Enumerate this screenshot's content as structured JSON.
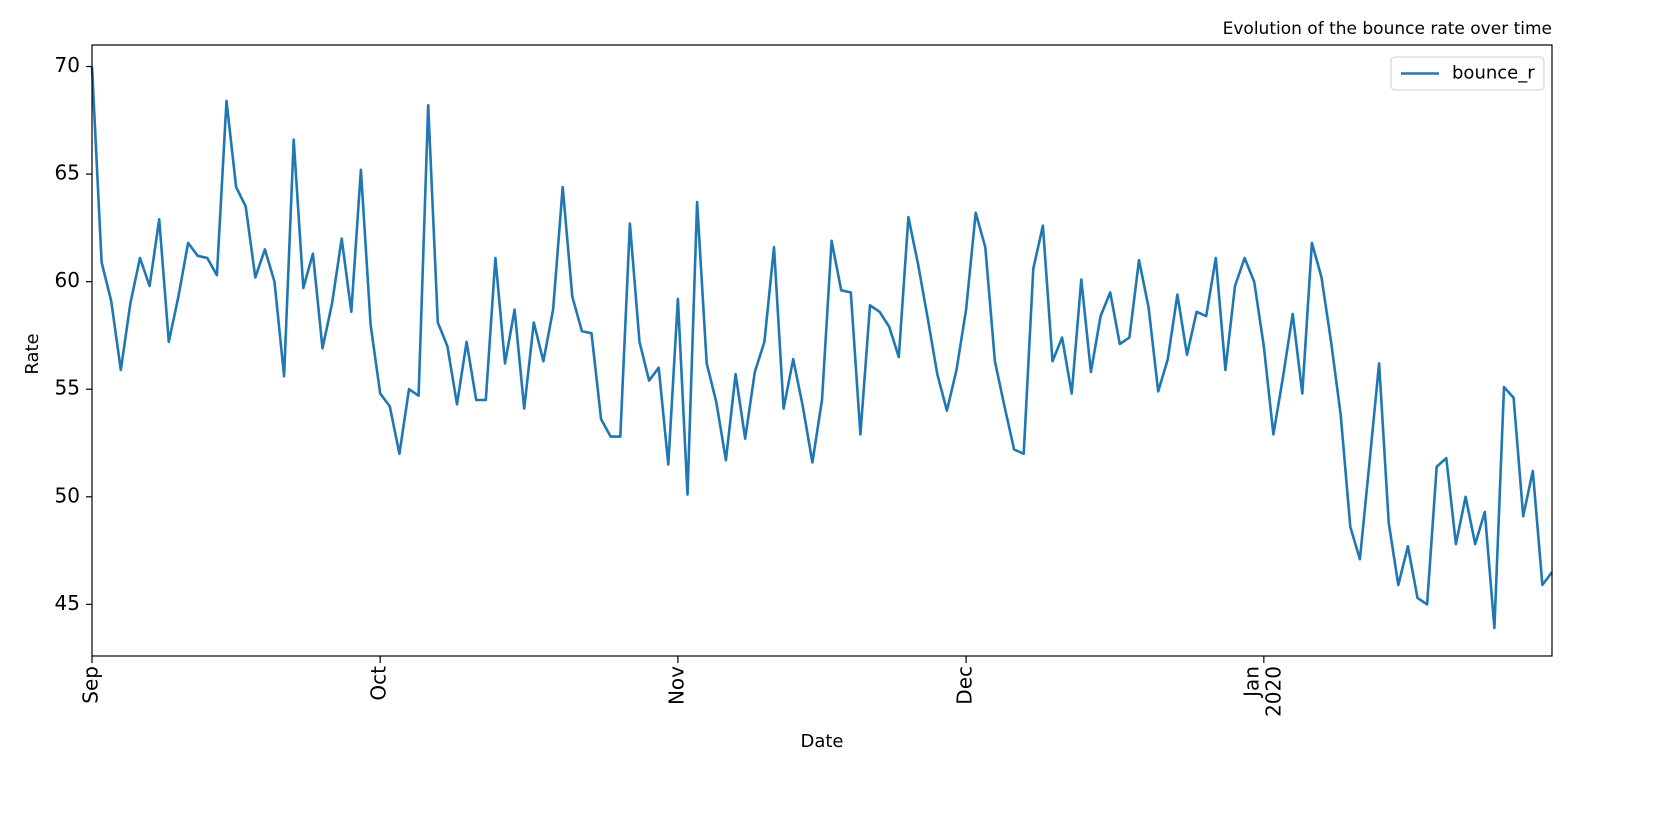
{
  "chart_data": {
    "type": "line",
    "title": "Evolution of the bounce rate over time",
    "xlabel": "Date",
    "ylabel": "Rate",
    "series": [
      {
        "name": "bounce_r",
        "color": "#1f77b4",
        "values": [
          70.0,
          60.9,
          59.1,
          55.9,
          59.0,
          61.1,
          59.8,
          62.9,
          57.2,
          59.3,
          61.8,
          61.2,
          61.1,
          60.3,
          68.4,
          64.4,
          63.5,
          60.2,
          61.5,
          60.0,
          55.6,
          66.6,
          59.7,
          61.3,
          56.9,
          59.0,
          62.0,
          58.6,
          65.2,
          58.0,
          54.8,
          54.2,
          52.0,
          55.0,
          54.7,
          68.2,
          58.1,
          57.0,
          54.3,
          57.2,
          54.5,
          54.5,
          61.1,
          56.2,
          58.7,
          54.1,
          58.1,
          56.3,
          58.7,
          64.4,
          59.3,
          57.7,
          57.6,
          53.6,
          52.8,
          52.8,
          62.7,
          57.2,
          55.4,
          56.0,
          51.5,
          59.2,
          50.1,
          63.7,
          56.2,
          54.4,
          51.7,
          55.7,
          52.7,
          55.8,
          57.2,
          61.6,
          54.1,
          56.4,
          54.2,
          51.6,
          54.5,
          61.9,
          59.6,
          59.5,
          52.9,
          58.9,
          58.6,
          57.9,
          56.5,
          63.0,
          60.8,
          58.3,
          55.7,
          54.0,
          55.9,
          58.7,
          63.2,
          61.6,
          56.3,
          54.2,
          52.2,
          52.0,
          60.6,
          62.6,
          56.3,
          57.4,
          54.8,
          60.1,
          55.8,
          58.4,
          59.5,
          57.1,
          57.4,
          61.0,
          58.8,
          54.9,
          56.4,
          59.4,
          56.6,
          58.6,
          58.4,
          61.1,
          55.9,
          59.8,
          61.1,
          60.0,
          57.0,
          52.9,
          55.6,
          58.5,
          54.8,
          61.8,
          60.2,
          57.2,
          53.8,
          48.6,
          47.1,
          51.6,
          56.2,
          48.8,
          45.9,
          47.7,
          45.3,
          45.0,
          51.4,
          51.8,
          47.8,
          50.0,
          47.8,
          49.3,
          43.9,
          55.1,
          54.6,
          49.1,
          51.2,
          45.9,
          46.5
        ]
      }
    ],
    "xlim": [
      0,
      152
    ],
    "xticks": [
      {
        "value": 0,
        "label": "Sep"
      },
      {
        "value": 30,
        "label": "Oct"
      },
      {
        "value": 61,
        "label": "Nov"
      },
      {
        "value": 91,
        "label": "Dec"
      },
      {
        "value": 122,
        "label": "Jan",
        "year": "2020"
      }
    ],
    "ylim": [
      42.6,
      71.0
    ],
    "yticks": [
      45,
      50,
      55,
      60,
      65,
      70
    ],
    "legend": "upper right"
  }
}
